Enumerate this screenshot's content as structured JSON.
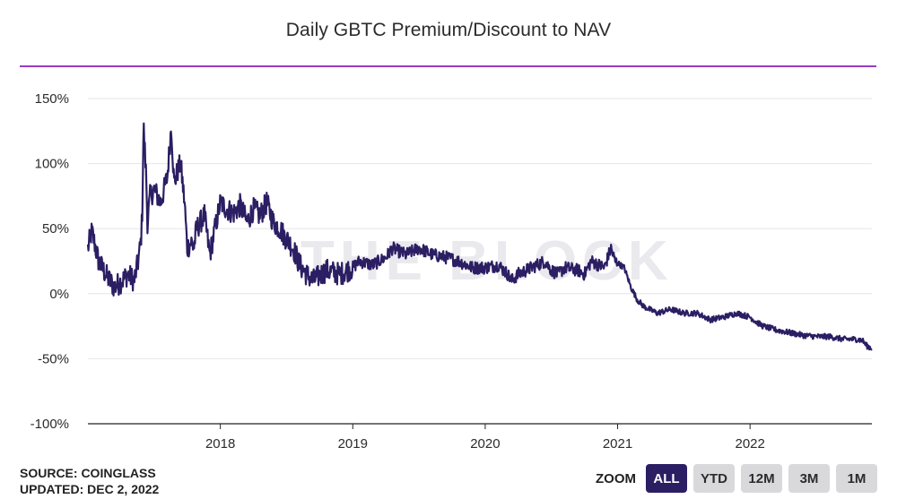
{
  "chart_data": {
    "type": "line",
    "title": "Daily GBTC Premium/Discount to NAV",
    "xlabel": "",
    "ylabel": "",
    "y_ticks": [
      "150%",
      "100%",
      "50%",
      "0%",
      "-50%",
      "-100%"
    ],
    "y_tick_values": [
      150,
      100,
      50,
      0,
      -50,
      -100
    ],
    "ylim": [
      -100,
      150
    ],
    "x_ticks": [
      "2018",
      "2019",
      "2020",
      "2021",
      "2022"
    ],
    "x_tick_values": [
      2018.0,
      2019.0,
      2020.0,
      2021.0,
      2022.0
    ],
    "xlim": [
      2017.0,
      2022.92
    ],
    "grid": true,
    "line_color": "#2b1e63",
    "series": [
      {
        "values_x": [
          2017.0,
          2017.03,
          2017.08,
          2017.15,
          2017.2,
          2017.26,
          2017.3,
          2017.35,
          2017.38,
          2017.4,
          2017.41,
          2017.42,
          2017.44,
          2017.45,
          2017.47,
          2017.5,
          2017.55,
          2017.6,
          2017.63,
          2017.65,
          2017.68,
          2017.7,
          2017.73,
          2017.75,
          2017.78,
          2017.8,
          2017.82,
          2017.88,
          2017.92,
          2018.0,
          2018.05,
          2018.1,
          2018.15,
          2018.2,
          2018.25,
          2018.3,
          2018.35,
          2018.4,
          2018.45,
          2018.48,
          2018.55,
          2018.6,
          2018.65,
          2018.7,
          2018.8,
          2018.9,
          2019.0,
          2019.05,
          2019.15,
          2019.25,
          2019.3,
          2019.4,
          2019.5,
          2019.6,
          2019.7,
          2019.8,
          2019.9,
          2020.0,
          2020.1,
          2020.17,
          2020.2,
          2020.25,
          2020.35,
          2020.45,
          2020.5,
          2020.55,
          2020.6,
          2020.7,
          2020.75,
          2020.8,
          2020.9,
          2020.95,
          2020.98,
          2021.05,
          2021.1,
          2021.15,
          2021.2,
          2021.3,
          2021.4,
          2021.5,
          2021.6,
          2021.7,
          2021.8,
          2021.9,
          2022.0,
          2022.05,
          2022.1,
          2022.2,
          2022.3,
          2022.4,
          2022.5,
          2022.6,
          2022.7,
          2022.8,
          2022.85,
          2022.88,
          2022.92
        ],
        "values_y": [
          35,
          48,
          25,
          12,
          5,
          10,
          15,
          10,
          25,
          40,
          60,
          130,
          90,
          55,
          75,
          80,
          70,
          90,
          130,
          85,
          95,
          100,
          70,
          35,
          40,
          35,
          50,
          60,
          30,
          70,
          65,
          62,
          68,
          55,
          65,
          60,
          70,
          55,
          50,
          45,
          35,
          22,
          15,
          10,
          18,
          15,
          20,
          25,
          22,
          28,
          35,
          30,
          35,
          30,
          28,
          25,
          20,
          20,
          22,
          15,
          10,
          15,
          20,
          25,
          18,
          15,
          20,
          18,
          15,
          25,
          20,
          35,
          25,
          20,
          5,
          -5,
          -10,
          -15,
          -12,
          -15,
          -15,
          -20,
          -18,
          -15,
          -18,
          -22,
          -25,
          -28,
          -30,
          -32,
          -33,
          -33,
          -35,
          -35,
          -36,
          -40,
          -42
        ]
      }
    ]
  },
  "watermark": "THE BLOCK",
  "footer": {
    "source": "SOURCE: COINGLASS",
    "updated": "UPDATED: DEC 2, 2022"
  },
  "zoom": {
    "label": "ZOOM",
    "buttons": [
      "ALL",
      "YTD",
      "12M",
      "3M",
      "1M"
    ],
    "active": "ALL"
  }
}
